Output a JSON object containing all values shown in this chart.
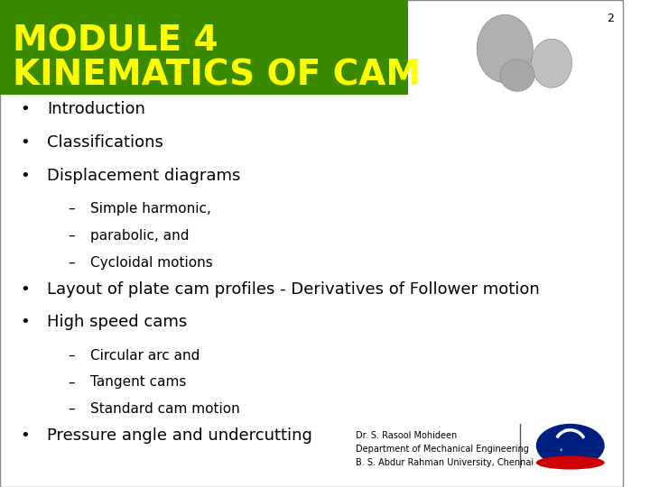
{
  "header_bg_color": "#3a8a00",
  "header_text_color": "#ffff00",
  "header_line1": "MODULE 4",
  "header_line2": "KINEMATICS OF CAM",
  "header_font_size": 28,
  "slide_bg_color": "#ffffff",
  "page_number": "2",
  "page_number_color": "#000000",
  "page_number_fontsize": 9,
  "bullet_color": "#000000",
  "bullet_fontsize": 13,
  "sub_bullet_fontsize": 11,
  "bullet_font": "DejaVu Sans",
  "bullets": [
    {
      "level": 1,
      "text": "Introduction"
    },
    {
      "level": 1,
      "text": "Classifications"
    },
    {
      "level": 1,
      "text": "Displacement diagrams"
    },
    {
      "level": 2,
      "text": "Simple harmonic,"
    },
    {
      "level": 2,
      "text": "parabolic, and"
    },
    {
      "level": 2,
      "text": "Cycloidal motions"
    },
    {
      "level": 1,
      "text": "Layout of plate cam profiles - Derivatives of Follower motion"
    },
    {
      "level": 1,
      "text": "High speed cams"
    },
    {
      "level": 2,
      "text": "Circular arc and"
    },
    {
      "level": 2,
      "text": "Tangent cams"
    },
    {
      "level": 2,
      "text": "Standard cam motion"
    },
    {
      "level": 1,
      "text": "Pressure angle and undercutting"
    }
  ],
  "footer_name": "Dr. S. Rasool Mohideen",
  "footer_dept": "Department of Mechanical Engineering",
  "footer_univ": "B. S. Abdur Rahman University, Chennai",
  "footer_fontsize": 7,
  "footer_color": "#000000",
  "border_color": "#888888",
  "border_linewidth": 1.0
}
